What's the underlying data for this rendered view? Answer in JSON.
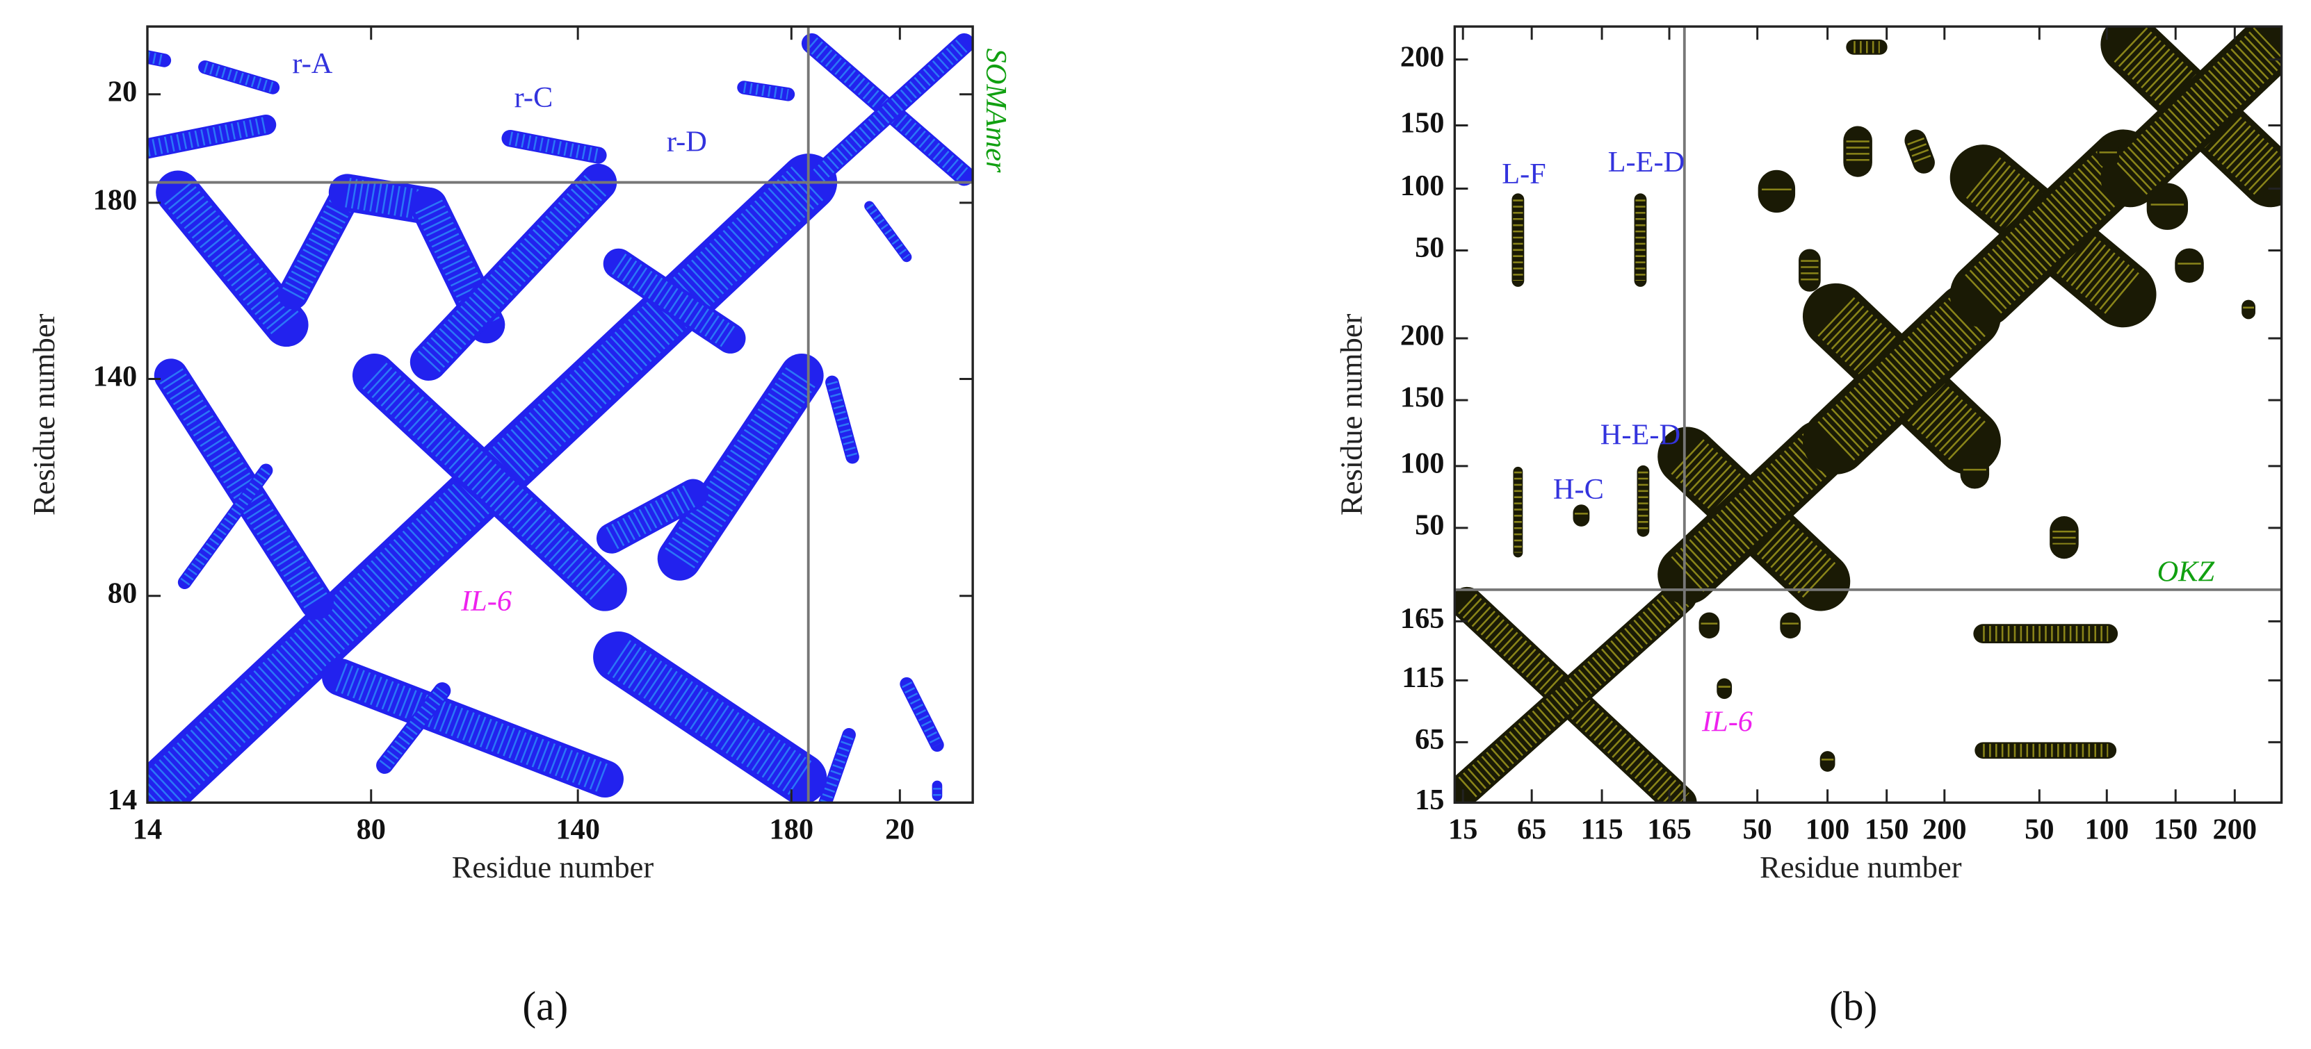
{
  "chart_data": [
    {
      "type": "contact_map",
      "caption": "(a)",
      "xlabel": "Residue number",
      "ylabel": "Residue number",
      "xlim": [
        14,
        257.5
      ],
      "ylim": [
        14,
        243
      ],
      "xticks": [
        14,
        80,
        {
          "value": 141,
          "label": "140"
        },
        {
          "value": 204,
          "label": "180"
        },
        {
          "value": 236,
          "label": "20"
        }
      ],
      "yticks": [
        14,
        {
          "value": 75,
          "label": "80"
        },
        {
          "value": 139,
          "label": "140"
        },
        {
          "value": 191,
          "label": "180"
        },
        {
          "value": 223,
          "label": "20"
        }
      ],
      "color": "#2222ee",
      "edge_color": "#33bbff",
      "dividers": {
        "x": 209,
        "y": 197
      },
      "annotations": [
        {
          "text": "r-A",
          "color": "#3333dd"
        },
        {
          "text": "r-C",
          "color": "#3333dd"
        },
        {
          "text": "r-D",
          "color": "#3333dd"
        },
        {
          "text": "IL-6",
          "color": "#ee22ee"
        },
        {
          "text": "SOMAmer",
          "color": "#11a011"
        }
      ],
      "contacts": [
        {
          "x": [
            14,
            209
          ],
          "y": [
            14,
            197
          ],
          "w": 17
        },
        {
          "x": [
            21,
            64
          ],
          "y": [
            140,
            73
          ],
          "w": 10
        },
        {
          "x": [
            25,
            49
          ],
          "y": [
            79,
            112
          ],
          "w": 4
        },
        {
          "x": [
            71,
            149
          ],
          "y": [
            51,
            21
          ],
          "w": 11
        },
        {
          "x": [
            84,
            101
          ],
          "y": [
            25,
            47
          ],
          "w": 5
        },
        {
          "x": [
            23,
            55
          ],
          "y": [
            194,
            155
          ],
          "w": 13
        },
        {
          "x": [
            57,
            73
          ],
          "y": [
            164,
            194
          ],
          "w": 9
        },
        {
          "x": [
            73,
            97
          ],
          "y": [
            194,
            190
          ],
          "w": 11
        },
        {
          "x": [
            97,
            114
          ],
          "y": [
            190,
            155
          ],
          "w": 11
        },
        {
          "x": [
            97,
            147
          ],
          "y": [
            144,
            197
          ],
          "w": 11
        },
        {
          "x": [
            81,
            149
          ],
          "y": [
            140,
            77
          ],
          "w": 13
        },
        {
          "x": [
            153,
            207
          ],
          "y": [
            57,
            21
          ],
          "w": 15
        },
        {
          "x": [
            171,
            207
          ],
          "y": [
            86,
            140
          ],
          "w": 13
        },
        {
          "x": [
            151,
            175
          ],
          "y": [
            92,
            105
          ],
          "w": 9
        },
        {
          "x": [
            153,
            186
          ],
          "y": [
            173,
            151
          ],
          "w": 9
        },
        {
          "x": [
            210,
            255
          ],
          "y": [
            238,
            199
          ],
          "w": 6
        },
        {
          "x": [
            212,
            255
          ],
          "y": [
            199,
            238
          ],
          "w": 6
        },
        {
          "x": [
            216,
            222
          ],
          "y": [
            138,
            116
          ],
          "w": 4
        },
        {
          "x": [
            238,
            247
          ],
          "y": [
            49,
            31
          ],
          "w": 4
        },
        {
          "x": [
            214,
            221
          ],
          "y": [
            14,
            34
          ],
          "w": 4
        },
        {
          "x": [
            227,
            238
          ],
          "y": [
            190,
            175
          ],
          "w": 3
        },
        {
          "x": [
            14,
            19
          ],
          "y": [
            234,
            233
          ],
          "w": 4
        },
        {
          "x": [
            14,
            49
          ],
          "y": [
            207,
            214
          ],
          "w": 6
        },
        {
          "x": [
            31,
            51
          ],
          "y": [
            231,
            225
          ],
          "w": 4
        },
        {
          "x": [
            121,
            147
          ],
          "y": [
            210,
            205
          ],
          "w": 5
        },
        {
          "x": [
            190,
            203
          ],
          "y": [
            225,
            223
          ],
          "w": 4
        },
        {
          "x": [
            247,
            247
          ],
          "y": [
            16,
            19
          ],
          "w": 3
        }
      ]
    },
    {
      "type": "contact_map",
      "caption": "(b)",
      "xlabel": "Residue number",
      "ylabel": "Residue number",
      "xlim": [
        9,
        610
      ],
      "ylim": [
        15,
        580
      ],
      "xticks": [
        15,
        65,
        {
          "value": 116,
          "label": "115"
        },
        165,
        {
          "value": 229,
          "label": "50"
        },
        {
          "value": 280,
          "label": "100"
        },
        {
          "value": 323,
          "label": "150"
        },
        {
          "value": 365,
          "label": "200"
        },
        {
          "value": 434,
          "label": "50"
        },
        {
          "value": 483,
          "label": "100"
        },
        {
          "value": 533,
          "label": "150"
        },
        {
          "value": 576,
          "label": "200"
        }
      ],
      "yticks": [
        15,
        {
          "value": 59,
          "label": "65"
        },
        {
          "value": 104,
          "label": "115"
        },
        {
          "value": 147,
          "label": "165"
        },
        {
          "value": 215,
          "label": "50"
        },
        {
          "value": 260,
          "label": "100"
        },
        {
          "value": 308,
          "label": "150"
        },
        {
          "value": 353,
          "label": "200"
        },
        {
          "value": 417,
          "label": "50"
        },
        {
          "value": 462,
          "label": "100"
        },
        {
          "value": 508,
          "label": "150"
        },
        {
          "value": 556,
          "label": "200"
        }
      ],
      "color": "#1a1a05",
      "edge_color": "#e6dc2a",
      "dividers": {
        "x": 176,
        "y": 170
      },
      "annotations": [
        {
          "text": "L-F",
          "color": "#3333dd"
        },
        {
          "text": "L-E-D",
          "color": "#3333dd"
        },
        {
          "text": "H-E-D",
          "color": "#3333dd"
        },
        {
          "text": "H-C",
          "color": "#3333dd"
        },
        {
          "text": "OKZ",
          "color": "#11a011"
        },
        {
          "text": "IL-6",
          "color": "#ee22ee"
        }
      ],
      "contacts": [
        {
          "x": [
            9,
            610
          ],
          "y": [
            15,
            580
          ],
          "w": 9
        },
        {
          "x": [
            18,
            173
          ],
          "y": [
            160,
            15
          ],
          "w": 24
        },
        {
          "x": [
            18,
            173
          ],
          "y": [
            26,
            165
          ],
          "w": 24
        },
        {
          "x": [
            178,
            275
          ],
          "y": [
            267,
            176
          ],
          "w": 43
        },
        {
          "x": [
            178,
            275
          ],
          "y": [
            181,
            272
          ],
          "w": 43
        },
        {
          "x": [
            286,
            382
          ],
          "y": [
            369,
            278
          ],
          "w": 48
        },
        {
          "x": [
            286,
            382
          ],
          "y": [
            278,
            369
          ],
          "w": 48
        },
        {
          "x": [
            393,
            495
          ],
          "y": [
            470,
            385
          ],
          "w": 48
        },
        {
          "x": [
            393,
            495
          ],
          "y": [
            385,
            481
          ],
          "w": 48
        },
        {
          "x": [
            500,
            602
          ],
          "y": [
            567,
            470
          ],
          "w": 43
        },
        {
          "x": [
            500,
            602
          ],
          "y": [
            470,
            567
          ],
          "w": 43
        },
        {
          "x": [
            55,
            55
          ],
          "y": [
            454,
            395
          ],
          "w": 9
        },
        {
          "x": [
            144,
            144
          ],
          "y": [
            454,
            395
          ],
          "w": 9
        },
        {
          "x": [
            243,
            243
          ],
          "y": [
            462,
            458
          ],
          "w": 27
        },
        {
          "x": [
            302,
            302
          ],
          "y": [
            497,
            481
          ],
          "w": 21
        },
        {
          "x": [
            344,
            350
          ],
          "y": [
            497,
            481
          ],
          "w": 16
        },
        {
          "x": [
            527,
            527
          ],
          "y": [
            451,
            447
          ],
          "w": 30
        },
        {
          "x": [
            387,
            387
          ],
          "y": [
            258,
            254
          ],
          "w": 21
        },
        {
          "x": [
            452,
            452
          ],
          "y": [
            213,
            203
          ],
          "w": 21
        },
        {
          "x": [
            194,
            194
          ],
          "y": [
            146,
            142
          ],
          "w": 15
        },
        {
          "x": [
            253,
            253
          ],
          "y": [
            146,
            142
          ],
          "w": 15
        },
        {
          "x": [
            393,
            484
          ],
          "y": [
            138,
            138
          ],
          "w": 14
        },
        {
          "x": [
            393,
            484
          ],
          "y": [
            53,
            53
          ],
          "w": 12
        },
        {
          "x": [
            55,
            55
          ],
          "y": [
            256,
            197
          ],
          "w": 7
        },
        {
          "x": [
            146,
            146
          ],
          "y": [
            256,
            213
          ],
          "w": 9
        },
        {
          "x": [
            101,
            101
          ],
          "y": [
            226,
            222
          ],
          "w": 12
        },
        {
          "x": [
            299,
            318
          ],
          "y": [
            565,
            565
          ],
          "w": 11
        },
        {
          "x": [
            484,
            484
          ],
          "y": [
            489,
            485
          ],
          "w": 16
        },
        {
          "x": [
            543,
            543
          ],
          "y": [
            408,
            404
          ],
          "w": 21
        },
        {
          "x": [
            267,
            267
          ],
          "y": [
            410,
            395
          ],
          "w": 16
        },
        {
          "x": [
            205,
            205
          ],
          "y": [
            100,
            96
          ],
          "w": 11
        },
        {
          "x": [
            280,
            280
          ],
          "y": [
            47,
            43
          ],
          "w": 11
        },
        {
          "x": [
            586,
            586
          ],
          "y": [
            376,
            372
          ],
          "w": 10
        }
      ]
    }
  ]
}
